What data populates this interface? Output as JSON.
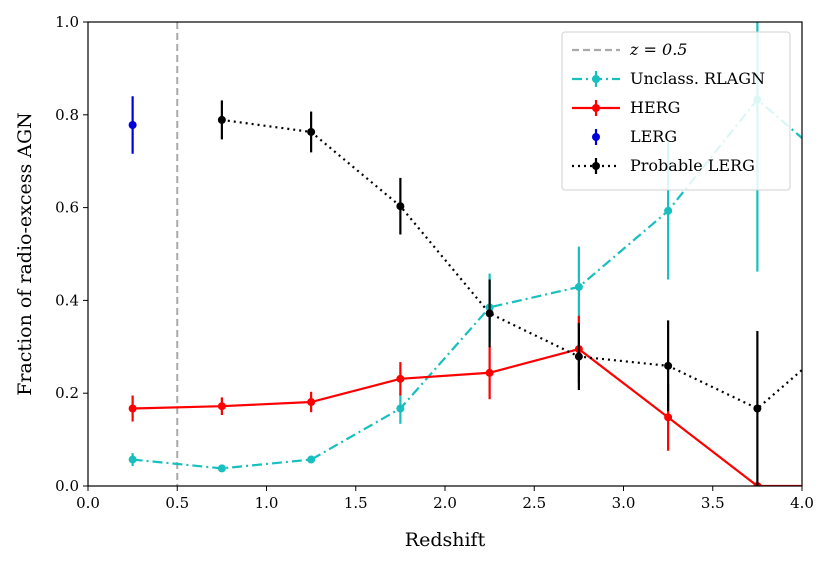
{
  "chart_data": {
    "type": "line",
    "xlabel": "Redshift",
    "ylabel": "Fraction of radio-excess AGN",
    "xlim": [
      0.0,
      4.0
    ],
    "ylim": [
      0.0,
      1.0
    ],
    "xticks": [
      "0.0",
      "0.5",
      "1.0",
      "1.5",
      "2.0",
      "2.5",
      "3.0",
      "3.5",
      "4.0"
    ],
    "yticks": [
      "0.0",
      "0.2",
      "0.4",
      "0.6",
      "0.8",
      "1.0"
    ],
    "grid": false,
    "legend_position": "top-right",
    "vline": {
      "x": 0.5,
      "label": "z = 0.5",
      "color": "#aaaaaa",
      "style": "dashed"
    },
    "series": [
      {
        "name": "Unclass. RLAGN",
        "color": "#17bfbf",
        "style": "dashdot",
        "x": [
          0.25,
          0.75,
          1.25,
          1.75,
          2.25,
          2.75,
          3.25,
          3.75,
          4.25
        ],
        "y": [
          0.057,
          0.038,
          0.057,
          0.167,
          0.385,
          0.429,
          0.593,
          0.833,
          0.667
        ],
        "yerr": [
          0.014,
          0.0,
          0.0,
          0.033,
          0.073,
          0.087,
          0.148,
          0.371,
          0.0
        ]
      },
      {
        "name": "HERG",
        "color": "#ff0000",
        "style": "solid",
        "x": [
          0.25,
          0.75,
          1.25,
          1.75,
          2.25,
          2.75,
          3.25,
          3.75,
          4.25
        ],
        "y": [
          0.167,
          0.172,
          0.181,
          0.231,
          0.244,
          0.295,
          0.148,
          0.0,
          0.0
        ],
        "yerr": [
          0.028,
          0.019,
          0.022,
          0.036,
          0.057,
          0.072,
          0.072,
          0.0,
          0.0
        ]
      },
      {
        "name": "LERG",
        "color": "#0000dd",
        "style": "none",
        "x": [
          0.25
        ],
        "y": [
          0.778
        ],
        "yerr": [
          0.062
        ]
      },
      {
        "name": "Probable LERG",
        "color": "#000000",
        "style": "dotted",
        "x": [
          0.75,
          1.25,
          1.75,
          2.25,
          2.75,
          3.25,
          3.75,
          4.25
        ],
        "y": [
          0.789,
          0.763,
          0.603,
          0.372,
          0.279,
          0.259,
          0.167,
          0.333
        ],
        "yerr": [
          0.042,
          0.044,
          0.061,
          0.073,
          0.072,
          0.098,
          0.167,
          0.0
        ]
      }
    ]
  }
}
